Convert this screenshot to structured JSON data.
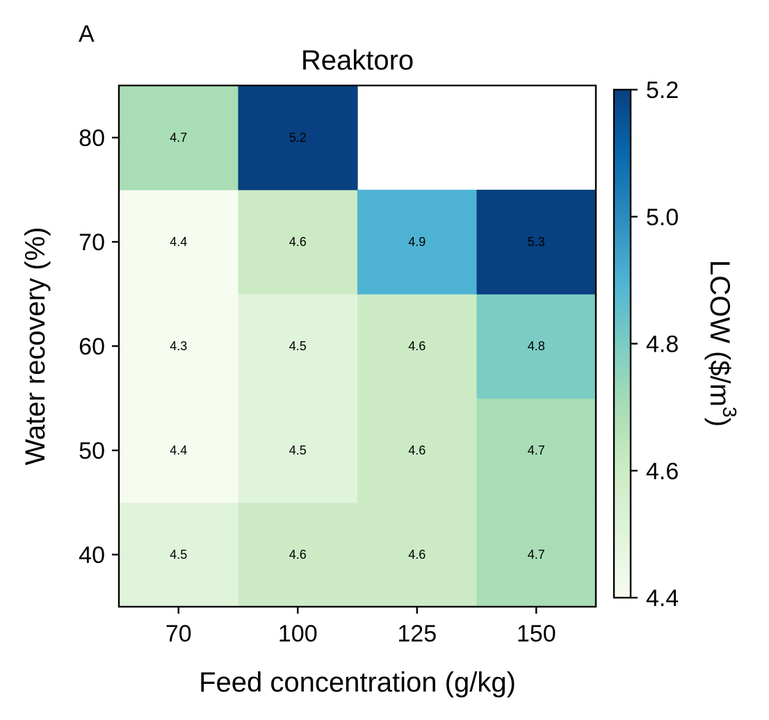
{
  "panel_label": "A",
  "chart_data": {
    "type": "heatmap",
    "title": "Reaktoro",
    "xlabel": "Feed concentration (g/kg)",
    "ylabel": "Water recovery (%)",
    "x_categories": [
      "70",
      "100",
      "125",
      "150"
    ],
    "y_categories": [
      "40",
      "50",
      "60",
      "70",
      "80"
    ],
    "values": [
      [
        4.5,
        4.6,
        4.6,
        4.7
      ],
      [
        4.4,
        4.5,
        4.6,
        4.7
      ],
      [
        4.3,
        4.5,
        4.6,
        4.8
      ],
      [
        4.4,
        4.6,
        4.9,
        5.3
      ],
      [
        4.7,
        5.2,
        null,
        null
      ]
    ],
    "value_labels": [
      [
        "4.5",
        "4.6",
        "4.6",
        "4.7"
      ],
      [
        "4.4",
        "4.5",
        "4.6",
        "4.7"
      ],
      [
        "4.3",
        "4.5",
        "4.6",
        "4.8"
      ],
      [
        "4.4",
        "4.6",
        "4.9",
        "5.3"
      ],
      [
        "4.7",
        "5.2",
        "",
        ""
      ]
    ],
    "colorbar": {
      "label_main": "LCOW ($/m",
      "label_sup": "3",
      "label_end": ")",
      "range": [
        4.4,
        5.2
      ],
      "ticks": [
        "4.4",
        "4.6",
        "4.8",
        "5.0",
        "5.2"
      ],
      "colormap": "GnBu"
    },
    "grid": false
  }
}
